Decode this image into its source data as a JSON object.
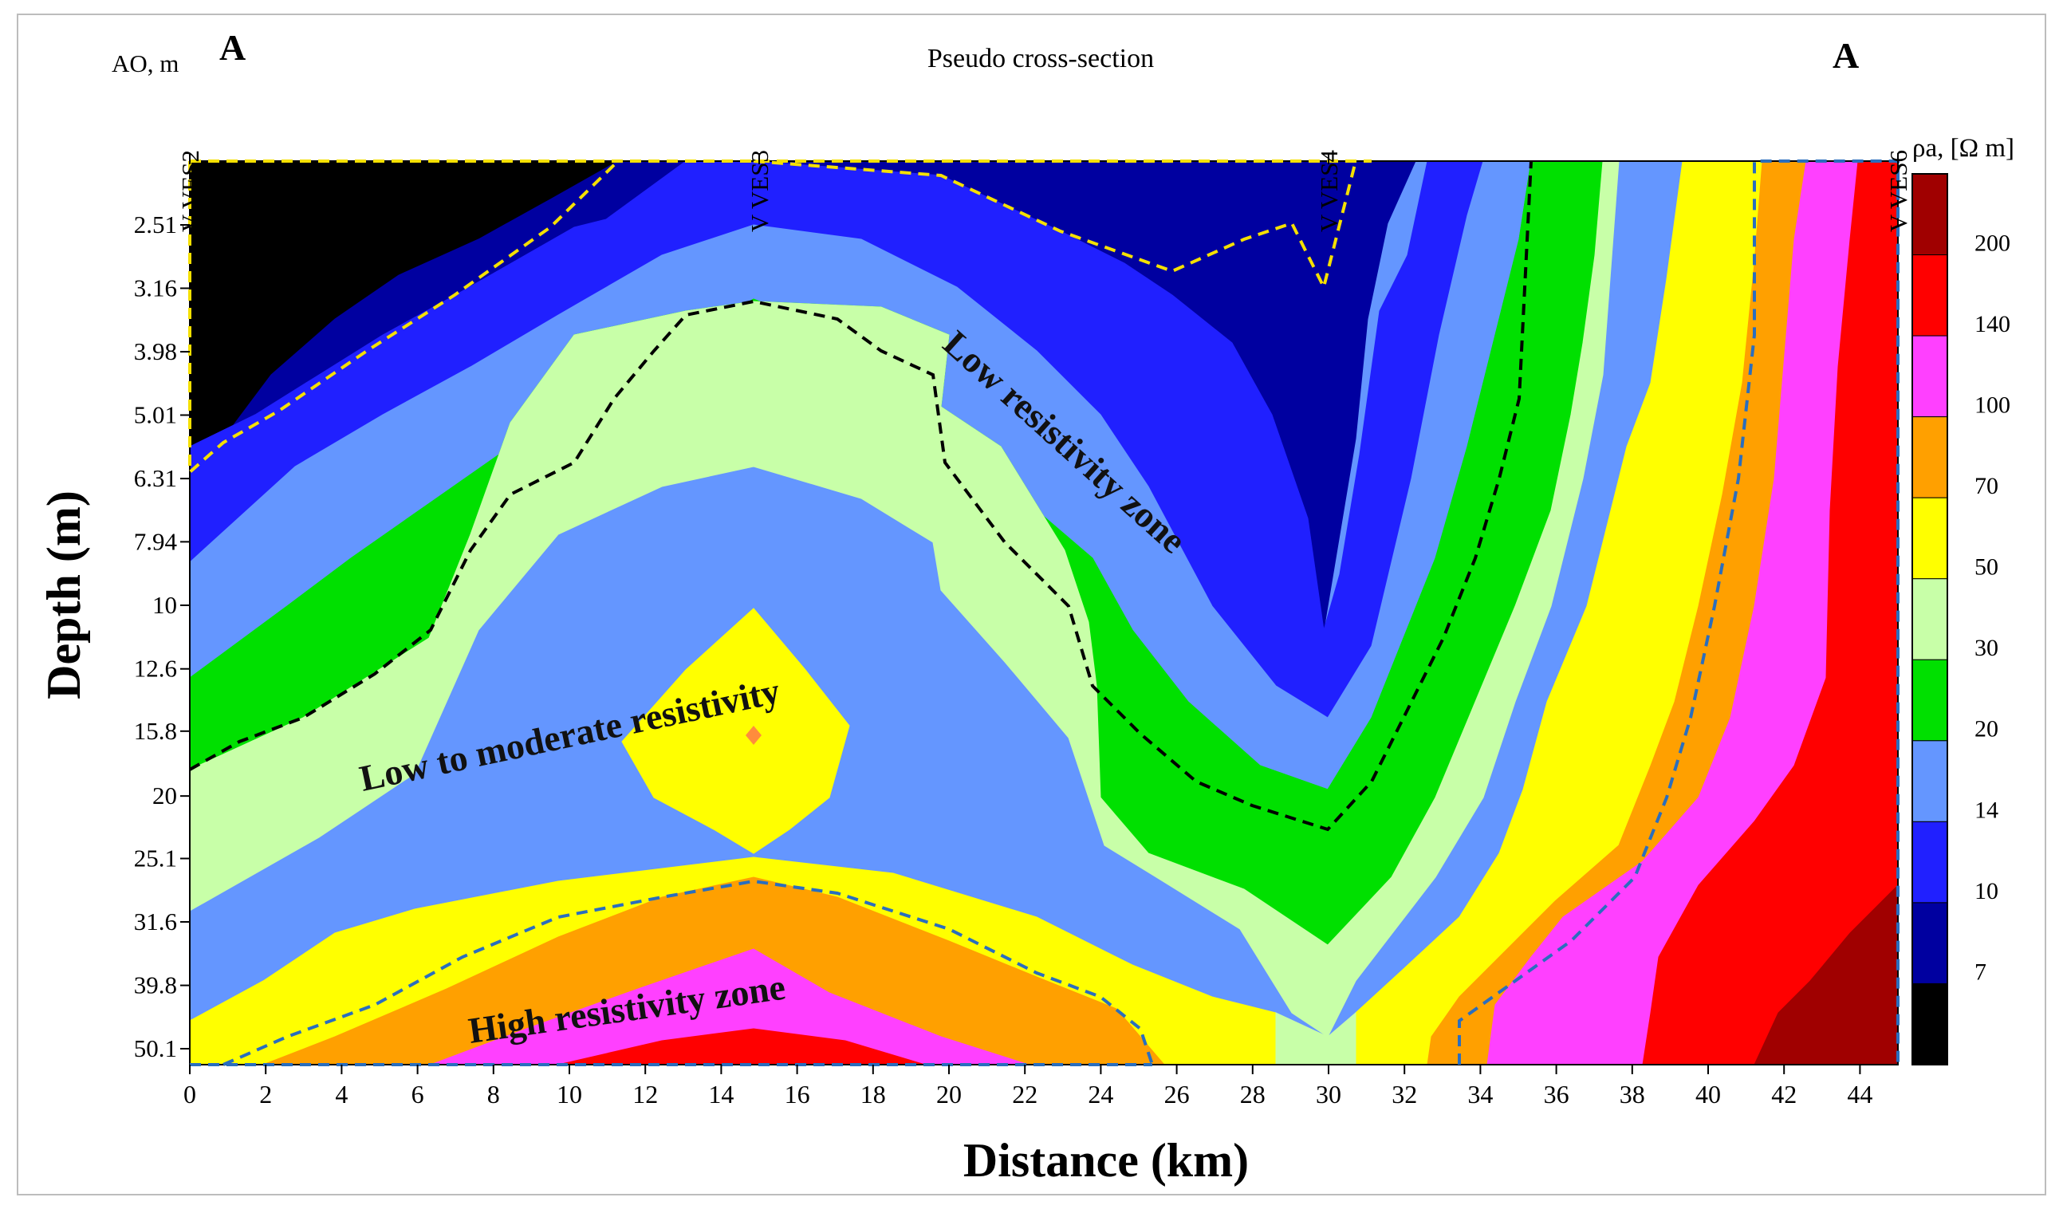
{
  "chart_data": {
    "type": "heatmap",
    "title": "Pseudo cross-section",
    "section_label_left": "A",
    "section_label_right": "A",
    "xlabel": "Distance (km)",
    "ylabel": "Depth (m)",
    "y_axis_header": "AO, m",
    "x_ticks": [
      0,
      2,
      4,
      6,
      8,
      10,
      12,
      14,
      16,
      18,
      20,
      22,
      24,
      26,
      28,
      30,
      32,
      34,
      36,
      38,
      40,
      42,
      44
    ],
    "xlim": [
      0,
      45
    ],
    "y_ticks": [
      "2.51",
      "3.16",
      "3.98",
      "5.01",
      "6.31",
      "7.94",
      "10",
      "12.6",
      "15.8",
      "20",
      "25.1",
      "31.6",
      "39.8",
      "50.1"
    ],
    "y_scale": "log",
    "stations": [
      {
        "name": "VES2",
        "x": 0
      },
      {
        "name": "VES3",
        "x": 15
      },
      {
        "name": "VES4",
        "x": 30
      },
      {
        "name": "VES6",
        "x": 45
      }
    ],
    "colorbar": {
      "title": "ρa, [Ω m]",
      "levels": [
        "200",
        "140",
        "100",
        "70",
        "50",
        "30",
        "20",
        "14",
        "10",
        "7"
      ],
      "colors": [
        "#a00000",
        "#ff0000",
        "#ff40ff",
        "#ffa000",
        "#ffff00",
        "#c8ffa8",
        "#00e000",
        "#6496ff",
        "#2020ff",
        "#0000a0",
        "#000000"
      ]
    },
    "annotations": [
      "Low resistivity zone",
      "Low to moderate resistivity",
      "High resistivity zone"
    ]
  }
}
